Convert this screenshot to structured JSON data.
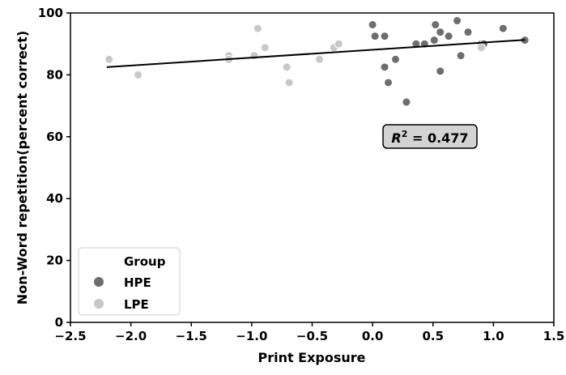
{
  "chart_data": {
    "type": "scatter",
    "xlabel": "Print Exposure",
    "ylabel": "Non-Word repetition(percent correct)",
    "xlim": [
      -2.5,
      1.5
    ],
    "ylim": [
      0,
      100
    ],
    "xticks": [
      -2.5,
      -2.0,
      -1.5,
      -1.0,
      -0.5,
      0.0,
      0.5,
      1.0,
      1.5
    ],
    "xtick_labels": [
      "−2.5",
      "−2.0",
      "−1.5",
      "−1.0",
      "−0.5",
      "0.0",
      "0.5",
      "1.0",
      "1.5"
    ],
    "yticks": [
      0,
      20,
      40,
      60,
      80,
      100
    ],
    "ytick_labels": [
      "0",
      "20",
      "40",
      "60",
      "80",
      "100"
    ],
    "grid": false,
    "legend": {
      "title": "Group",
      "placement": "lower-left"
    },
    "series": [
      {
        "name": "HPE",
        "color": "#6e6e6e",
        "points": [
          [
            0.0,
            96.2
          ],
          [
            0.02,
            92.5
          ],
          [
            0.1,
            92.5
          ],
          [
            0.1,
            82.5
          ],
          [
            0.13,
            77.5
          ],
          [
            0.19,
            85.0
          ],
          [
            0.28,
            71.2
          ],
          [
            0.36,
            90.0
          ],
          [
            0.43,
            90.0
          ],
          [
            0.51,
            91.2
          ],
          [
            0.52,
            96.2
          ],
          [
            0.56,
            93.8
          ],
          [
            0.56,
            81.2
          ],
          [
            0.63,
            92.5
          ],
          [
            0.7,
            97.5
          ],
          [
            0.73,
            86.2
          ],
          [
            0.79,
            93.8
          ],
          [
            0.9,
            90.0
          ],
          [
            0.92,
            90.0
          ],
          [
            1.08,
            95.0
          ],
          [
            1.26,
            91.2
          ]
        ]
      },
      {
        "name": "LPE",
        "color": "#c8c8c8",
        "points": [
          [
            -2.18,
            85.0
          ],
          [
            -1.94,
            80.0
          ],
          [
            -1.19,
            86.2
          ],
          [
            -1.19,
            85.0
          ],
          [
            -0.98,
            86.2
          ],
          [
            -0.95,
            95.0
          ],
          [
            -0.89,
            88.8
          ],
          [
            -0.71,
            82.5
          ],
          [
            -0.69,
            77.5
          ],
          [
            -0.44,
            85.0
          ],
          [
            -0.32,
            88.8
          ],
          [
            -0.28,
            90.0
          ],
          [
            0.9,
            88.8
          ]
        ]
      }
    ],
    "regression_line": {
      "x": [
        -2.2,
        1.26
      ],
      "y": [
        82.5,
        91.3
      ]
    },
    "annotation": {
      "prefix": "R",
      "superscript": "2",
      "equals": " = ",
      "value": "0.477",
      "x": 0.51,
      "y": 60.5
    }
  }
}
